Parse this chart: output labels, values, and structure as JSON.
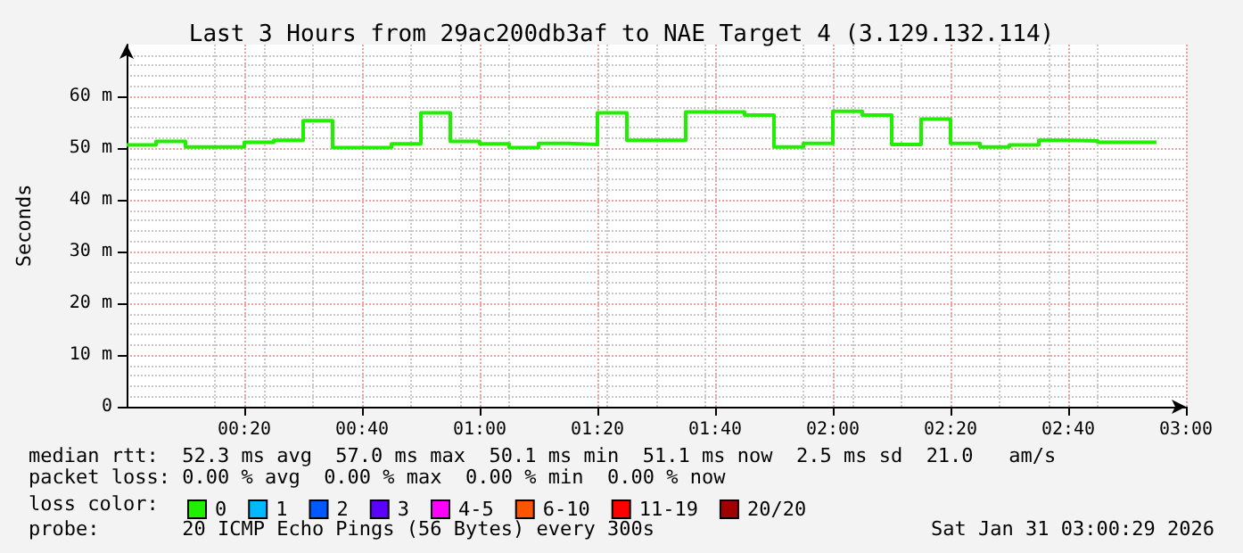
{
  "chart_data": {
    "type": "step",
    "title": "Last 3 Hours from 29ac200db3af to NAE Target 4 (3.129.132.114)",
    "ylabel": "Seconds",
    "legend_title": "loss color:",
    "x": [
      "2026-01-31T00:00",
      "2026-01-31T00:05",
      "2026-01-31T00:10",
      "2026-01-31T00:15",
      "2026-01-31T00:20",
      "2026-01-31T00:25",
      "2026-01-31T00:30",
      "2026-01-31T00:35",
      "2026-01-31T00:40",
      "2026-01-31T00:45",
      "2026-01-31T00:50",
      "2026-01-31T00:55",
      "2026-01-31T01:00",
      "2026-01-31T01:05",
      "2026-01-31T01:10",
      "2026-01-31T01:15",
      "2026-01-31T01:20",
      "2026-01-31T01:25",
      "2026-01-31T01:30",
      "2026-01-31T01:35",
      "2026-01-31T01:40",
      "2026-01-31T01:45",
      "2026-01-31T01:50",
      "2026-01-31T01:55",
      "2026-01-31T02:00",
      "2026-01-31T02:05",
      "2026-01-31T02:10",
      "2026-01-31T02:15",
      "2026-01-31T02:20",
      "2026-01-31T02:25",
      "2026-01-31T02:30",
      "2026-01-31T02:35",
      "2026-01-31T02:40",
      "2026-01-31T02:45",
      "2026-01-31T02:50",
      "2026-01-31T02:55"
    ],
    "series": [
      {
        "name": "0",
        "color": "#20f000",
        "values": [
          50.6,
          51.3,
          50.2,
          50.2,
          51.1,
          51.5,
          55.3,
          50.1,
          50.1,
          50.8,
          56.8,
          51.3,
          50.8,
          50.1,
          50.9,
          50.7,
          56.8,
          51.5,
          51.5,
          57.0,
          57.0,
          56.4,
          50.2,
          50.9,
          57.1,
          56.4,
          50.7,
          55.6,
          50.9,
          50.2,
          50.6,
          51.5,
          51.4,
          51.1,
          51.1,
          51.1
        ]
      },
      {
        "name": "1",
        "color": "#00b8ff",
        "values": [
          null,
          null,
          null,
          null,
          null,
          null,
          null,
          null,
          null,
          null,
          null,
          null,
          null,
          null,
          null,
          null,
          null,
          null,
          null,
          null,
          null,
          null,
          null,
          null,
          null,
          null,
          null,
          null,
          null,
          null,
          null,
          null,
          null,
          null,
          null,
          null
        ]
      },
      {
        "name": "2",
        "color": "#0059ff",
        "values": [
          null,
          null,
          null,
          null,
          null,
          null,
          null,
          null,
          null,
          null,
          null,
          null,
          null,
          null,
          null,
          null,
          null,
          null,
          null,
          null,
          null,
          null,
          null,
          null,
          null,
          null,
          null,
          null,
          null,
          null,
          null,
          null,
          null,
          null,
          null,
          null
        ]
      },
      {
        "name": "3",
        "color": "#5e00ff",
        "values": [
          null,
          null,
          null,
          null,
          null,
          null,
          null,
          null,
          null,
          null,
          null,
          null,
          null,
          null,
          null,
          null,
          null,
          null,
          null,
          null,
          null,
          null,
          null,
          null,
          null,
          null,
          null,
          null,
          null,
          null,
          null,
          null,
          null,
          null,
          null,
          null
        ]
      },
      {
        "name": "4-5",
        "color": "#ff00ff",
        "values": [
          null,
          null,
          null,
          null,
          null,
          null,
          null,
          null,
          null,
          null,
          null,
          null,
          null,
          null,
          null,
          null,
          null,
          null,
          null,
          null,
          null,
          null,
          null,
          null,
          null,
          null,
          null,
          null,
          null,
          null,
          null,
          null,
          null,
          null,
          null,
          null
        ]
      },
      {
        "name": "6-10",
        "color": "#ff5500",
        "values": [
          null,
          null,
          null,
          null,
          null,
          null,
          null,
          null,
          null,
          null,
          null,
          null,
          null,
          null,
          null,
          null,
          null,
          null,
          null,
          null,
          null,
          null,
          null,
          null,
          null,
          null,
          null,
          null,
          null,
          null,
          null,
          null,
          null,
          null,
          null,
          null
        ]
      },
      {
        "name": "11-19",
        "color": "#ff0000",
        "values": [
          null,
          null,
          null,
          null,
          null,
          null,
          null,
          null,
          null,
          null,
          null,
          null,
          null,
          null,
          null,
          null,
          null,
          null,
          null,
          null,
          null,
          null,
          null,
          null,
          null,
          null,
          null,
          null,
          null,
          null,
          null,
          null,
          null,
          null,
          null,
          null
        ]
      },
      {
        "name": "20/20",
        "color": "#a10000",
        "values": [
          null,
          null,
          null,
          null,
          null,
          null,
          null,
          null,
          null,
          null,
          null,
          null,
          null,
          null,
          null,
          null,
          null,
          null,
          null,
          null,
          null,
          null,
          null,
          null,
          null,
          null,
          null,
          null,
          null,
          null,
          null,
          null,
          null,
          null,
          null,
          null
        ]
      }
    ],
    "xlim": [
      "2026-01-31T00:00",
      "2026-01-31T03:00"
    ],
    "xticks": [
      {
        "value": "2026-01-31T00:20",
        "label": "00:20"
      },
      {
        "value": "2026-01-31T00:40",
        "label": "00:40"
      },
      {
        "value": "2026-01-31T01:00",
        "label": "01:00"
      },
      {
        "value": "2026-01-31T01:20",
        "label": "01:20"
      },
      {
        "value": "2026-01-31T01:40",
        "label": "01:40"
      },
      {
        "value": "2026-01-31T02:00",
        "label": "02:00"
      },
      {
        "value": "2026-01-31T02:20",
        "label": "02:20"
      },
      {
        "value": "2026-01-31T02:40",
        "label": "02:40"
      },
      {
        "value": "2026-01-31T03:00",
        "label": "03:00"
      }
    ],
    "ylim": [
      0,
      70
    ],
    "yticks": [
      0,
      {
        "value": 10,
        "label": "10 m"
      },
      {
        "value": 20,
        "label": "20 m"
      },
      {
        "value": 30,
        "label": "30 m"
      },
      {
        "value": 40,
        "label": "40 m"
      },
      {
        "value": 50,
        "label": "50 m"
      },
      {
        "value": 60,
        "label": "60 m"
      }
    ],
    "grid": true,
    "legend": "bottom",
    "marker": "none",
    "line_style": "solid",
    "annotations": [
      "median rtt:  52.3 ms avg  57.0 ms max  50.1 ms min  51.1 ms now  2.5 ms sd  21.0   am/s",
      "packet loss: 0.00 % avg  0.00 % max  0.00 % min  0.00 % now",
      "probe:       20 ICMP Echo Pings (56 Bytes) every 300s",
      "Sat Jan 31 03:00:29 2026"
    ]
  }
}
